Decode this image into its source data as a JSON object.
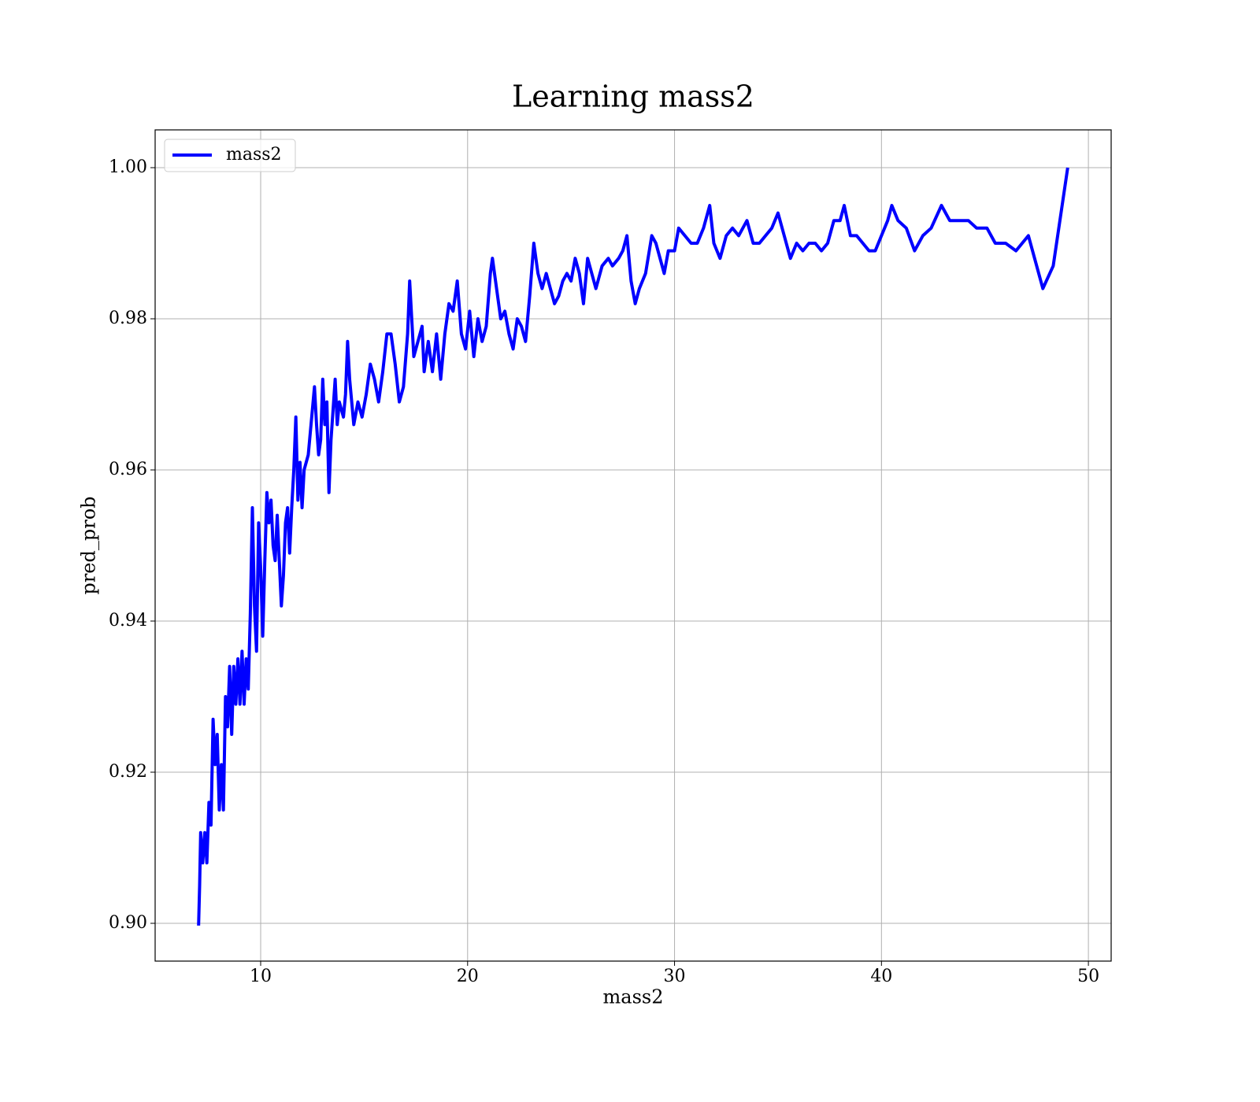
{
  "chart_data": {
    "type": "line",
    "title": "Learning mass2",
    "xlabel": "mass2",
    "ylabel": "pred_prob",
    "x": [
      7.0,
      7.05,
      7.1,
      7.2,
      7.3,
      7.4,
      7.5,
      7.6,
      7.7,
      7.8,
      7.9,
      8.0,
      8.1,
      8.2,
      8.3,
      8.4,
      8.5,
      8.6,
      8.7,
      8.8,
      8.9,
      9.0,
      9.1,
      9.2,
      9.3,
      9.4,
      9.5,
      9.6,
      9.7,
      9.8,
      9.9,
      10.0,
      10.1,
      10.2,
      10.3,
      10.4,
      10.5,
      10.6,
      10.7,
      10.8,
      10.9,
      11.0,
      11.1,
      11.2,
      11.3,
      11.4,
      11.5,
      11.6,
      11.7,
      11.8,
      11.9,
      12.0,
      12.1,
      12.3,
      12.5,
      12.6,
      12.7,
      12.8,
      12.9,
      13.0,
      13.1,
      13.2,
      13.3,
      13.4,
      13.6,
      13.7,
      13.8,
      14.0,
      14.1,
      14.2,
      14.3,
      14.5,
      14.7,
      14.9,
      15.1,
      15.3,
      15.5,
      15.7,
      15.9,
      16.1,
      16.3,
      16.5,
      16.7,
      16.9,
      17.1,
      17.2,
      17.4,
      17.6,
      17.8,
      17.9,
      18.1,
      18.3,
      18.5,
      18.7,
      18.9,
      19.1,
      19.3,
      19.5,
      19.7,
      19.9,
      20.1,
      20.3,
      20.5,
      20.7,
      20.9,
      21.1,
      21.2,
      21.4,
      21.6,
      21.8,
      22.0,
      22.2,
      22.4,
      22.6,
      22.8,
      23.0,
      23.2,
      23.4,
      23.6,
      23.8,
      24.0,
      24.2,
      24.4,
      24.6,
      24.8,
      25.0,
      25.2,
      25.4,
      25.6,
      25.8,
      26.0,
      26.2,
      26.5,
      26.8,
      27.0,
      27.3,
      27.5,
      27.7,
      27.9,
      28.1,
      28.3,
      28.6,
      28.9,
      29.1,
      29.3,
      29.5,
      29.7,
      30.0,
      30.2,
      30.5,
      30.8,
      31.1,
      31.4,
      31.7,
      31.9,
      32.2,
      32.5,
      32.8,
      33.1,
      33.5,
      33.8,
      34.1,
      34.4,
      34.7,
      35.0,
      35.3,
      35.6,
      35.9,
      36.2,
      36.5,
      36.8,
      37.1,
      37.4,
      37.7,
      38.0,
      38.2,
      38.5,
      38.8,
      39.1,
      39.4,
      39.7,
      40.0,
      40.3,
      40.5,
      40.8,
      41.2,
      41.6,
      42.0,
      42.4,
      42.9,
      43.3,
      43.8,
      44.2,
      44.6,
      45.1,
      45.5,
      46.0,
      46.5,
      47.1,
      47.4,
      47.8,
      48.3,
      49.0
    ],
    "series": [
      {
        "name": "mass2",
        "color": "#0000ff",
        "values": [
          0.8997,
          0.905,
          0.912,
          0.908,
          0.912,
          0.908,
          0.916,
          0.913,
          0.927,
          0.921,
          0.925,
          0.915,
          0.921,
          0.915,
          0.93,
          0.926,
          0.934,
          0.925,
          0.934,
          0.929,
          0.935,
          0.929,
          0.936,
          0.929,
          0.935,
          0.931,
          0.941,
          0.955,
          0.942,
          0.936,
          0.953,
          0.947,
          0.938,
          0.948,
          0.957,
          0.953,
          0.956,
          0.95,
          0.948,
          0.954,
          0.948,
          0.942,
          0.946,
          0.953,
          0.955,
          0.949,
          0.955,
          0.96,
          0.967,
          0.956,
          0.961,
          0.955,
          0.96,
          0.962,
          0.968,
          0.971,
          0.966,
          0.962,
          0.964,
          0.972,
          0.966,
          0.969,
          0.957,
          0.964,
          0.972,
          0.966,
          0.969,
          0.967,
          0.97,
          0.977,
          0.972,
          0.966,
          0.969,
          0.967,
          0.97,
          0.974,
          0.972,
          0.969,
          0.973,
          0.978,
          0.978,
          0.974,
          0.969,
          0.971,
          0.978,
          0.985,
          0.975,
          0.977,
          0.979,
          0.973,
          0.977,
          0.973,
          0.978,
          0.972,
          0.978,
          0.982,
          0.981,
          0.985,
          0.978,
          0.976,
          0.981,
          0.975,
          0.98,
          0.977,
          0.979,
          0.986,
          0.988,
          0.984,
          0.98,
          0.981,
          0.978,
          0.976,
          0.98,
          0.979,
          0.977,
          0.983,
          0.99,
          0.986,
          0.984,
          0.986,
          0.984,
          0.982,
          0.983,
          0.985,
          0.986,
          0.985,
          0.988,
          0.986,
          0.982,
          0.988,
          0.986,
          0.984,
          0.987,
          0.988,
          0.987,
          0.988,
          0.989,
          0.991,
          0.985,
          0.982,
          0.984,
          0.986,
          0.991,
          0.99,
          0.988,
          0.986,
          0.989,
          0.989,
          0.992,
          0.991,
          0.99,
          0.99,
          0.992,
          0.995,
          0.99,
          0.988,
          0.991,
          0.992,
          0.991,
          0.993,
          0.99,
          0.99,
          0.991,
          0.992,
          0.994,
          0.991,
          0.988,
          0.99,
          0.989,
          0.99,
          0.99,
          0.989,
          0.99,
          0.993,
          0.993,
          0.995,
          0.991,
          0.991,
          0.99,
          0.989,
          0.989,
          0.991,
          0.993,
          0.995,
          0.993,
          0.992,
          0.989,
          0.991,
          0.992,
          0.995,
          0.993,
          0.993,
          0.993,
          0.992,
          0.992,
          0.99,
          0.99,
          0.989,
          0.991,
          0.988,
          0.984,
          0.987,
          1.0
        ]
      }
    ],
    "xlim": [
      4.9,
      51.1
    ],
    "xticks": [
      10,
      20,
      30,
      40,
      50
    ],
    "ylim": [
      0.895,
      1.005
    ],
    "yticks": [
      {
        "value": 0.9,
        "label": "0.90"
      },
      {
        "value": 0.92,
        "label": "0.92"
      },
      {
        "value": 0.94,
        "label": "0.94"
      },
      {
        "value": 0.96,
        "label": "0.96"
      },
      {
        "value": 0.98,
        "label": "0.98"
      },
      {
        "value": 1.0,
        "label": "1.00"
      }
    ],
    "grid": true,
    "legend": "upper left"
  }
}
